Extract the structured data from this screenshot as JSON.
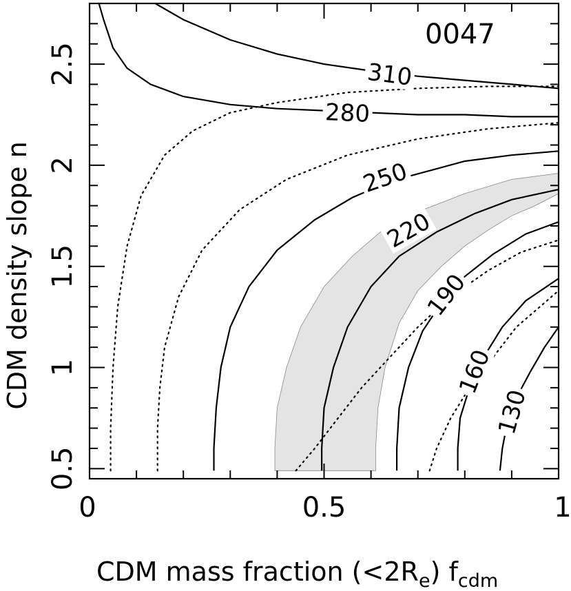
{
  "chart_data": {
    "type": "contour",
    "title": "0047",
    "xlabel": "CDM mass fraction (<2R",
    "xlabel_sub": "e",
    "xlabel_tail": ") f",
    "xlabel_sub2": "cdm",
    "ylabel": "CDM density slope n",
    "xlim": [
      0,
      1
    ],
    "ylim": [
      0.45,
      2.8
    ],
    "x_ticks": [
      {
        "value": 0,
        "label": "0"
      },
      {
        "value": 0.5,
        "label": "0.5"
      },
      {
        "value": 1,
        "label": "1"
      }
    ],
    "y_ticks": [
      {
        "value": 0.5,
        "label": "0.5"
      },
      {
        "value": 1,
        "label": "1"
      },
      {
        "value": 1.5,
        "label": "1.5"
      },
      {
        "value": 2,
        "label": "2"
      },
      {
        "value": 2.5,
        "label": "2.5"
      }
    ],
    "shaded_band": {
      "left": [
        [
          0.395,
          0.49
        ],
        [
          0.395,
          0.6
        ],
        [
          0.4,
          0.8
        ],
        [
          0.42,
          1.0
        ],
        [
          0.45,
          1.2
        ],
        [
          0.5,
          1.4
        ],
        [
          0.56,
          1.55
        ],
        [
          0.62,
          1.67
        ],
        [
          0.7,
          1.77
        ],
        [
          0.8,
          1.86
        ],
        [
          0.9,
          1.93
        ],
        [
          1.0,
          1.96
        ]
      ],
      "right": [
        [
          1.0,
          1.86
        ],
        [
          0.95,
          1.8
        ],
        [
          0.9,
          1.75
        ],
        [
          0.85,
          1.68
        ],
        [
          0.8,
          1.6
        ],
        [
          0.75,
          1.5
        ],
        [
          0.7,
          1.38
        ],
        [
          0.66,
          1.22
        ],
        [
          0.63,
          1.0
        ],
        [
          0.615,
          0.8
        ],
        [
          0.61,
          0.6
        ],
        [
          0.61,
          0.49
        ]
      ]
    },
    "contours": [
      {
        "label": "310",
        "style": "solid",
        "points": [
          [
            0.14,
            2.82
          ],
          [
            0.2,
            2.72
          ],
          [
            0.3,
            2.62
          ],
          [
            0.4,
            2.55
          ],
          [
            0.5,
            2.5
          ],
          [
            0.59,
            2.47
          ],
          [
            0.7,
            2.44
          ],
          [
            0.8,
            2.42
          ],
          [
            0.9,
            2.4
          ],
          [
            1.0,
            2.38
          ]
        ],
        "label_at": [
          0.64,
          2.45
        ]
      },
      {
        "label": "280",
        "style": "solid",
        "points": [
          [
            0.02,
            2.82
          ],
          [
            0.03,
            2.72
          ],
          [
            0.05,
            2.58
          ],
          [
            0.08,
            2.48
          ],
          [
            0.13,
            2.4
          ],
          [
            0.2,
            2.34
          ],
          [
            0.3,
            2.3
          ],
          [
            0.4,
            2.28
          ],
          [
            0.5,
            2.27
          ],
          [
            0.6,
            2.26
          ],
          [
            0.7,
            2.25
          ],
          [
            0.8,
            2.25
          ],
          [
            0.9,
            2.24
          ],
          [
            1.0,
            2.24
          ]
        ],
        "label_at": [
          0.55,
          2.26
        ]
      },
      {
        "label": "250",
        "style": "solid",
        "points": [
          [
            0.265,
            0.49
          ],
          [
            0.265,
            0.6
          ],
          [
            0.27,
            0.8
          ],
          [
            0.28,
            1.0
          ],
          [
            0.3,
            1.2
          ],
          [
            0.34,
            1.4
          ],
          [
            0.4,
            1.58
          ],
          [
            0.48,
            1.73
          ],
          [
            0.56,
            1.84
          ],
          [
            0.64,
            1.92
          ],
          [
            0.72,
            1.97
          ],
          [
            0.8,
            2.02
          ],
          [
            0.9,
            2.05
          ],
          [
            1.0,
            2.07
          ]
        ],
        "label_at": [
          0.63,
          1.94
        ]
      },
      {
        "label": "220",
        "style": "solid",
        "points": [
          [
            0.495,
            0.49
          ],
          [
            0.495,
            0.6
          ],
          [
            0.5,
            0.8
          ],
          [
            0.52,
            1.0
          ],
          [
            0.55,
            1.2
          ],
          [
            0.6,
            1.4
          ],
          [
            0.66,
            1.55
          ],
          [
            0.74,
            1.67
          ],
          [
            0.82,
            1.76
          ],
          [
            0.9,
            1.83
          ],
          [
            1.0,
            1.88
          ]
        ],
        "label_at": [
          0.68,
          1.68
        ]
      },
      {
        "label": "190",
        "style": "solid",
        "points": [
          [
            0.655,
            0.49
          ],
          [
            0.655,
            0.6
          ],
          [
            0.66,
            0.8
          ],
          [
            0.68,
            1.0
          ],
          [
            0.71,
            1.18
          ],
          [
            0.75,
            1.32
          ],
          [
            0.8,
            1.45
          ],
          [
            0.86,
            1.56
          ],
          [
            0.93,
            1.66
          ],
          [
            1.0,
            1.72
          ]
        ],
        "label_at": [
          0.76,
          1.36
        ]
      },
      {
        "label": "160",
        "style": "solid",
        "points": [
          [
            0.785,
            0.49
          ],
          [
            0.785,
            0.6
          ],
          [
            0.79,
            0.75
          ],
          [
            0.81,
            0.9
          ],
          [
            0.84,
            1.05
          ],
          [
            0.88,
            1.2
          ],
          [
            0.93,
            1.33
          ],
          [
            1.0,
            1.44
          ]
        ],
        "label_at": [
          0.82,
          0.98
        ]
      },
      {
        "label": "130",
        "style": "solid",
        "points": [
          [
            0.875,
            0.49
          ],
          [
            0.88,
            0.6
          ],
          [
            0.89,
            0.72
          ],
          [
            0.91,
            0.85
          ],
          [
            0.94,
            0.98
          ],
          [
            0.97,
            1.1
          ],
          [
            1.0,
            1.2
          ]
        ],
        "label_at": [
          0.9,
          0.78
        ]
      },
      {
        "style": "dotted",
        "points": [
          [
            0.045,
            0.49
          ],
          [
            0.045,
            0.7
          ],
          [
            0.05,
            1.0
          ],
          [
            0.06,
            1.3
          ],
          [
            0.08,
            1.6
          ],
          [
            0.11,
            1.85
          ],
          [
            0.16,
            2.05
          ],
          [
            0.22,
            2.17
          ],
          [
            0.3,
            2.26
          ],
          [
            0.4,
            2.31
          ],
          [
            0.55,
            2.36
          ],
          [
            0.7,
            2.38
          ],
          [
            0.85,
            2.39
          ],
          [
            1.0,
            2.39
          ]
        ]
      },
      {
        "style": "dotted",
        "points": [
          [
            0.145,
            0.49
          ],
          [
            0.145,
            0.7
          ],
          [
            0.15,
            0.9
          ],
          [
            0.16,
            1.1
          ],
          [
            0.19,
            1.35
          ],
          [
            0.24,
            1.58
          ],
          [
            0.32,
            1.78
          ],
          [
            0.42,
            1.93
          ],
          [
            0.55,
            2.05
          ],
          [
            0.7,
            2.13
          ],
          [
            0.85,
            2.18
          ],
          [
            1.0,
            2.21
          ]
        ]
      },
      {
        "style": "dotted",
        "points": [
          [
            0.44,
            0.49
          ],
          [
            0.48,
            0.6
          ],
          [
            0.53,
            0.75
          ],
          [
            0.58,
            0.9
          ],
          [
            0.64,
            1.05
          ],
          [
            0.7,
            1.2
          ],
          [
            0.77,
            1.35
          ],
          [
            0.85,
            1.48
          ],
          [
            0.92,
            1.57
          ],
          [
            1.0,
            1.63
          ]
        ]
      },
      {
        "style": "dotted",
        "points": [
          [
            0.725,
            0.49
          ],
          [
            0.74,
            0.6
          ],
          [
            0.77,
            0.75
          ],
          [
            0.81,
            0.9
          ],
          [
            0.86,
            1.05
          ],
          [
            0.91,
            1.2
          ],
          [
            0.96,
            1.3
          ],
          [
            1.0,
            1.38
          ]
        ]
      }
    ]
  }
}
